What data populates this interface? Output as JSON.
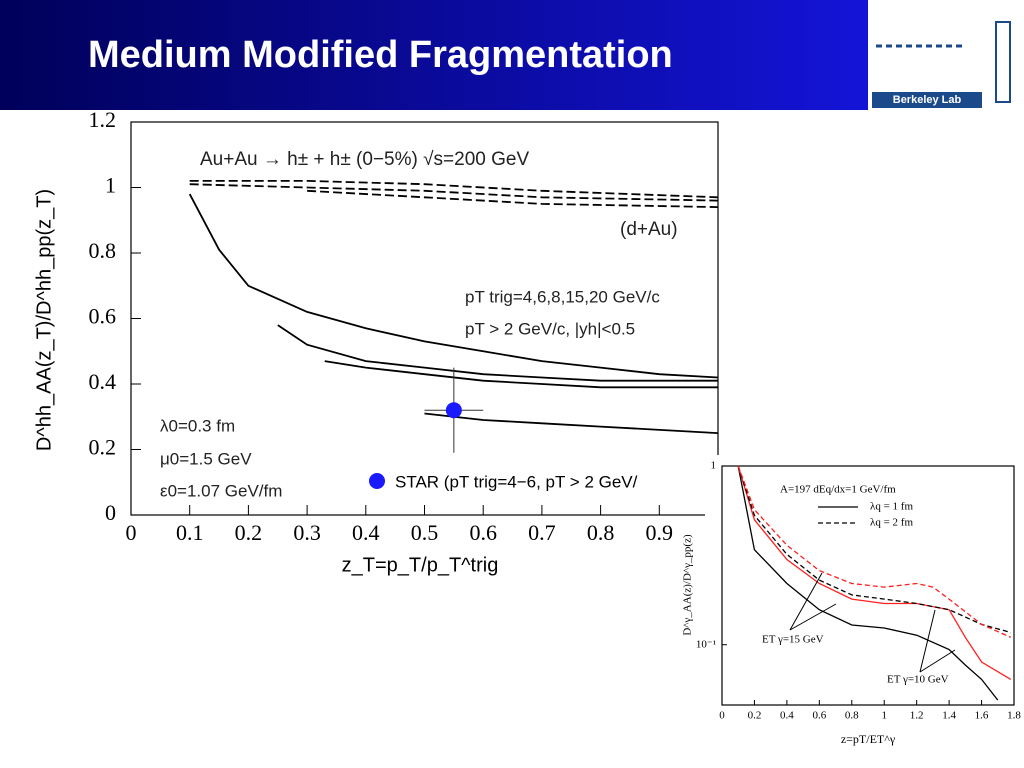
{
  "slide": {
    "title": "Medium Modified Fragmentation",
    "logo": "Berkeley Lab"
  },
  "chart_data": [
    {
      "type": "line",
      "y_label": "D^hh_AA(z_T)/D^hh_pp(z_T)",
      "x_label": "z_T=p_T/p_T^trig",
      "xlim": [
        0,
        1
      ],
      "ylim": [
        0,
        1.2
      ],
      "xticks": [
        0,
        0.1,
        0.2,
        0.3,
        0.4,
        0.5,
        0.6,
        0.7,
        0.8,
        0.9
      ],
      "yticks": [
        0,
        0.2,
        0.4,
        0.6,
        0.8,
        1,
        1.2
      ],
      "annotations": [
        "Au+Au → h± + h± (0−5%) √s=200 GeV",
        "(d+Au)",
        "pT trig=4,6,8,15,20 GeV/c",
        "pT > 2 GeV/c, |yh|<0.5",
        "λ0=0.3 fm",
        "μ0=1.5 GeV",
        "ε0=1.07 GeV/fm"
      ],
      "series": [
        {
          "color": "#000000",
          "dash": false,
          "x": [
            0.1,
            0.15,
            0.2,
            0.3,
            0.4,
            0.5,
            0.6,
            0.7,
            0.8,
            0.9,
            1.0
          ],
          "values": [
            0.98,
            0.81,
            0.7,
            0.62,
            0.57,
            0.53,
            0.5,
            0.47,
            0.45,
            0.43,
            0.42
          ]
        },
        {
          "color": "#000000",
          "dash": false,
          "x": [
            0.25,
            0.3,
            0.4,
            0.5,
            0.6,
            0.7,
            0.8,
            0.9,
            1.0
          ],
          "values": [
            0.58,
            0.52,
            0.47,
            0.45,
            0.43,
            0.42,
            0.41,
            0.41,
            0.41
          ]
        },
        {
          "color": "#000000",
          "dash": false,
          "x": [
            0.33,
            0.4,
            0.5,
            0.6,
            0.7,
            0.8,
            1.0
          ],
          "values": [
            0.47,
            0.45,
            0.43,
            0.41,
            0.4,
            0.39,
            0.39
          ]
        },
        {
          "color": "#000000",
          "dash": false,
          "x": [
            0.5,
            0.6,
            0.7,
            0.8,
            1.0
          ],
          "values": [
            0.31,
            0.29,
            0.28,
            0.27,
            0.25
          ]
        },
        {
          "color": "#000000",
          "dash": true,
          "x": [
            0.1,
            0.3,
            0.5,
            0.7,
            1.0
          ],
          "values": [
            1.02,
            1.02,
            1.01,
            0.99,
            0.97
          ]
        },
        {
          "color": "#000000",
          "dash": true,
          "x": [
            0.1,
            0.3,
            0.5,
            0.7,
            1.0
          ],
          "values": [
            1.01,
            1.0,
            0.99,
            0.97,
            0.96
          ]
        },
        {
          "color": "#000000",
          "dash": true,
          "x": [
            0.3,
            0.5,
            0.7,
            1.0
          ],
          "values": [
            0.99,
            0.97,
            0.95,
            0.94
          ]
        },
        {
          "name": "STAR (pT trig=4−6, pT > 2 GeV/",
          "type": "scatter",
          "color": "#1a1aff",
          "x": [
            0.55
          ],
          "values": [
            0.32
          ],
          "xerr": [
            0.05
          ],
          "yerr": [
            0.13
          ]
        }
      ]
    },
    {
      "type": "line",
      "log_y": true,
      "y_label": "D^γ_AA(z)/D^γ_pp(z)",
      "x_label": "z=pT/ET^γ",
      "xlim": [
        0,
        1.8
      ],
      "ylim": [
        0.046,
        1
      ],
      "xticks": [
        0,
        0.2,
        0.4,
        0.6,
        0.8,
        1,
        1.2,
        1.4,
        1.6,
        1.8
      ],
      "yticks": [
        {
          "value": 0.1,
          "label": "10⁻¹"
        },
        1
      ],
      "annotations": [
        "A=197  dEq/dx=1 GeV/fm",
        "λq = 1 fm",
        "λq = 2 fm",
        "ET γ=15 GeV",
        "ET γ=10 GeV"
      ],
      "series": [
        {
          "color": "#000000",
          "dash": false,
          "x": [
            0.1,
            0.2,
            0.4,
            0.6,
            0.8,
            1.0,
            1.2,
            1.4,
            1.5,
            1.6,
            1.7
          ],
          "values": [
            1,
            0.34,
            0.22,
            0.157,
            0.129,
            0.124,
            0.113,
            0.094,
            0.077,
            0.064,
            0.049
          ]
        },
        {
          "color": "#ff2020",
          "dash": false,
          "x": [
            0.1,
            0.2,
            0.4,
            0.6,
            0.8,
            1.0,
            1.2,
            1.4,
            1.5,
            1.6,
            1.78
          ],
          "values": [
            1,
            0.5,
            0.3,
            0.22,
            0.18,
            0.17,
            0.17,
            0.157,
            0.11,
            0.08,
            0.064
          ]
        },
        {
          "color": "#000000",
          "dash": true,
          "x": [
            0.1,
            0.2,
            0.4,
            0.6,
            0.8,
            1.0,
            1.2,
            1.4,
            1.6,
            1.78
          ],
          "values": [
            1,
            0.53,
            0.32,
            0.23,
            0.19,
            0.18,
            0.17,
            0.157,
            0.13,
            0.117
          ]
        },
        {
          "color": "#ff2020",
          "dash": true,
          "x": [
            0.1,
            0.2,
            0.4,
            0.6,
            0.8,
            1.0,
            1.2,
            1.3,
            1.4,
            1.6,
            1.78
          ],
          "values": [
            1,
            0.57,
            0.36,
            0.26,
            0.22,
            0.21,
            0.22,
            0.21,
            0.18,
            0.13,
            0.11
          ]
        }
      ]
    }
  ]
}
